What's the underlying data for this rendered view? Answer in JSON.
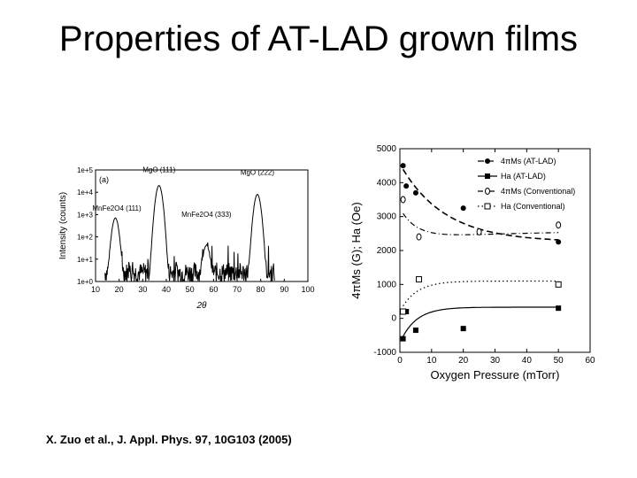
{
  "slide": {
    "title": "Properties of AT-LAD grown films",
    "citation": "X. Zuo et al., J. Appl. Phys. 97, 10G103 (2005)"
  },
  "chart_data": [
    {
      "type": "line",
      "panel_label": "(a)",
      "xlabel": "2θ",
      "ylabel": "Intensity (counts)",
      "xlim": [
        10,
        100
      ],
      "x_ticks": [
        "10",
        "20",
        "30",
        "40",
        "50",
        "60",
        "70",
        "80",
        "90",
        "100"
      ],
      "y_ticks": [
        "1e+0",
        "1e+1",
        "1e+2",
        "1e+3",
        "1e+4",
        "1e+5"
      ],
      "yscale": "log",
      "ylim": [
        1,
        100000
      ],
      "grid": false,
      "annotations": [
        {
          "text": "MnFe2O4 (111)",
          "x": 19,
          "y": 1500
        },
        {
          "text": "MgO (111)",
          "x": 36.9,
          "y": 80000
        },
        {
          "text": "MnFe2O4 (333)",
          "x": 57,
          "y": 800
        },
        {
          "text": "MgO (222)",
          "x": 78.6,
          "y": 60000
        }
      ],
      "peaks": [
        {
          "x": 18.4,
          "y": 700
        },
        {
          "x": 36.9,
          "y": 20000
        },
        {
          "x": 57.0,
          "y": 40
        },
        {
          "x": 78.6,
          "y": 8000
        }
      ],
      "baseline": 2.5,
      "line_color": "#000000"
    },
    {
      "type": "scatter",
      "xlabel": "Oxygen Pressure (mTorr)",
      "ylabel": "4πMs (G); Ha (Oe)",
      "xlim": [
        0,
        60
      ],
      "ylim": [
        -1000,
        5000
      ],
      "x_ticks": [
        "0",
        "10",
        "20",
        "30",
        "40",
        "50",
        "60"
      ],
      "y_ticks": [
        "-1000",
        "0",
        "1000",
        "2000",
        "3000",
        "4000",
        "5000"
      ],
      "grid": false,
      "legend": "top-right",
      "series": [
        {
          "name": "4πMs (AT-LAD)",
          "marker": "filled-circle",
          "line": "dashed",
          "x": [
            1,
            2,
            5,
            20,
            50
          ],
          "y": [
            4500,
            3900,
            3700,
            3250,
            2250
          ]
        },
        {
          "name": "Ha (AT-LAD)",
          "marker": "filled-square",
          "line": "solid",
          "x": [
            1,
            2,
            5,
            20,
            50
          ],
          "y": [
            -600,
            200,
            -350,
            -300,
            300
          ]
        },
        {
          "name": "4πMs (Conventional)",
          "marker": "open-circle",
          "line": "dash-dot",
          "x": [
            1,
            6,
            25,
            50
          ],
          "y": [
            3500,
            2400,
            2550,
            2750
          ]
        },
        {
          "name": "Ha (Conventional)",
          "marker": "open-square",
          "line": "dotted",
          "x": [
            1,
            6,
            50
          ],
          "y": [
            200,
            1150,
            1000
          ]
        }
      ]
    }
  ]
}
